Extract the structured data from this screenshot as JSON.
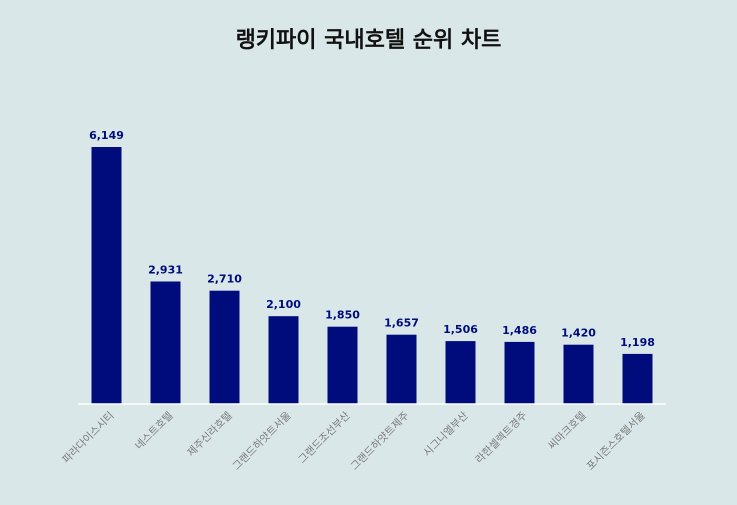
{
  "chart_data": {
    "type": "bar",
    "title": "랭키파이 국내호텔 순위 차트",
    "categories": [
      "파라다이스시티",
      "네스트호텔",
      "제주신라호텔",
      "그랜드하얏트서울",
      "그랜드조선부산",
      "그랜드하얏트제주",
      "시그니엘부산",
      "라한셀렉트경주",
      "씨마크호텔",
      "포시즌스호텔서울"
    ],
    "values": [
      6149,
      2931,
      2710,
      2100,
      1850,
      1657,
      1506,
      1486,
      1420,
      1198
    ],
    "value_labels": [
      "6,149",
      "2,931",
      "2,710",
      "2,100",
      "1,850",
      "1,657",
      "1,506",
      "1,486",
      "1,420",
      "1,198"
    ],
    "ylim": [
      0,
      6149
    ],
    "grid": false,
    "legend": "none",
    "bar_color": "#000c7b",
    "label_color": "#000c7b",
    "tick_color": "#7a7a7a"
  }
}
